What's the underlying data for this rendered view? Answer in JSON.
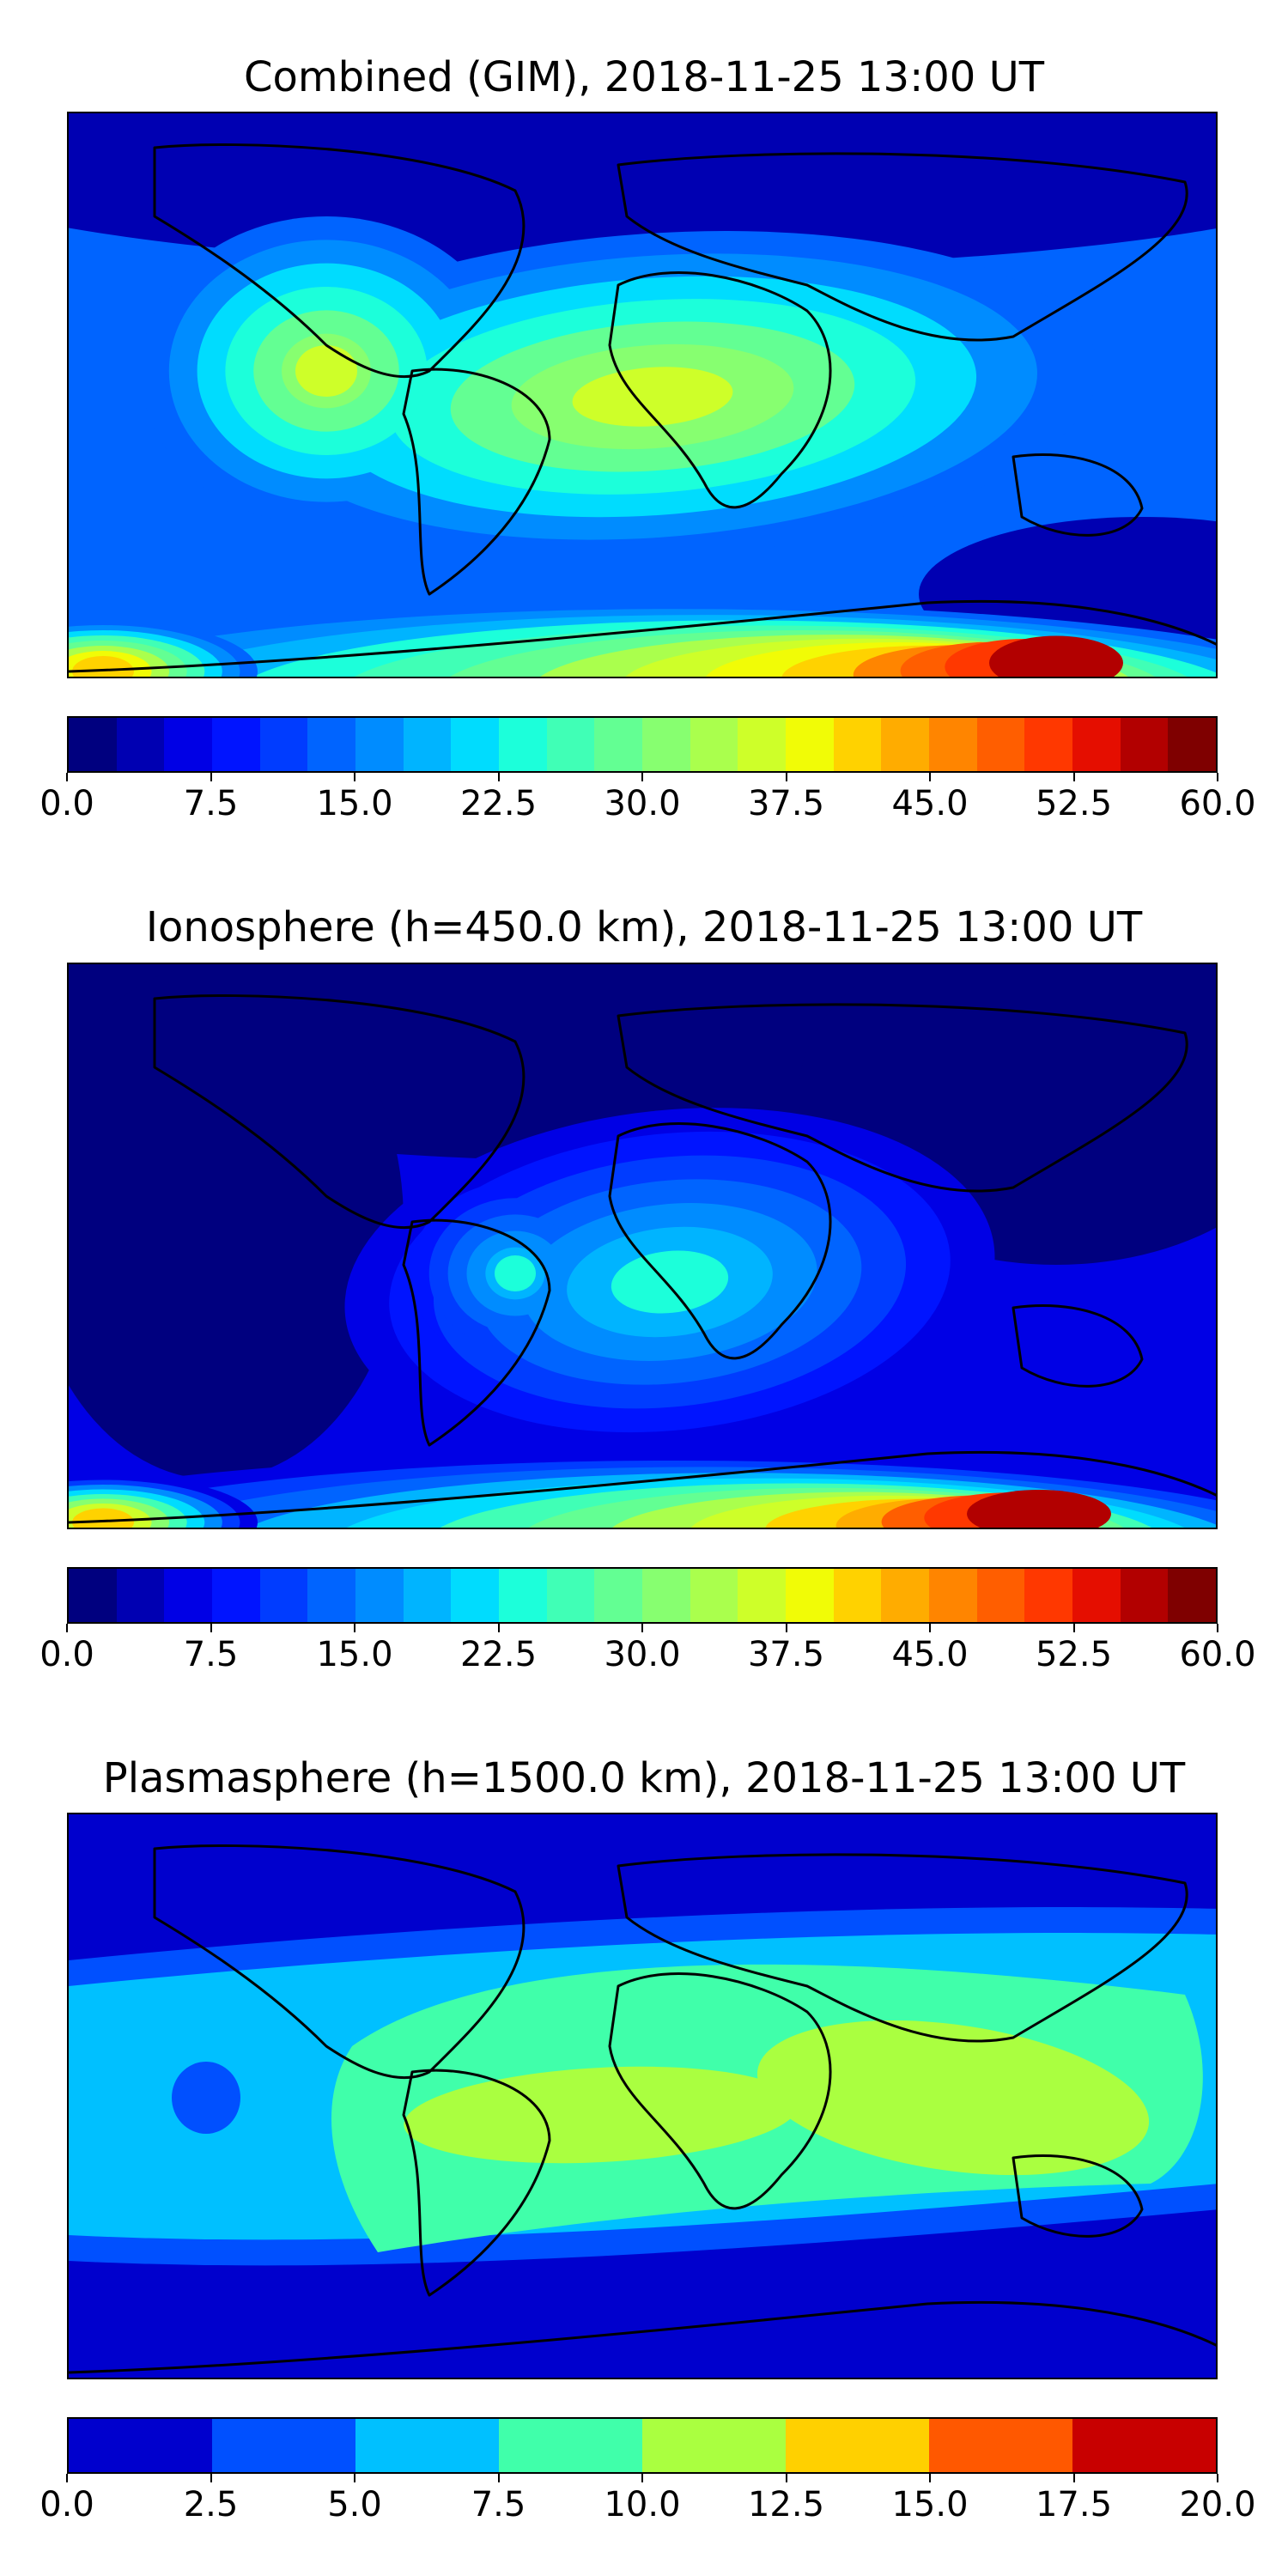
{
  "chart_data": [
    {
      "type": "heatmap",
      "title": "Combined (GIM), 2018-11-25 13:00 UT",
      "colorbar": {
        "min": 0.0,
        "max": 60.0,
        "levels": 24,
        "tick_labels": [
          "0.0",
          "7.5",
          "15.0",
          "22.5",
          "30.0",
          "37.5",
          "45.0",
          "52.5",
          "60.0"
        ],
        "colors": [
          "#00007f",
          "#0000b2",
          "#0000e5",
          "#0014ff",
          "#003cff",
          "#0064ff",
          "#008cff",
          "#00b4ff",
          "#00dcfe",
          "#1cffda",
          "#40ffb6",
          "#63ff93",
          "#87ff70",
          "#aaff4d",
          "#ceff29",
          "#f1fc06",
          "#ffd200",
          "#ffac00",
          "#ff8500",
          "#ff5e00",
          "#ff3800",
          "#e50e00",
          "#b20000",
          "#7f0000"
        ]
      },
      "map": {
        "background_value": 12.5,
        "features": [
          {
            "label": "equatorial crest",
            "peak_value": 35.5
          },
          {
            "label": "south polar maximum",
            "peak_value": 55.0
          },
          {
            "label": "northern high-latitude minimum",
            "peak_value": 3.0
          }
        ]
      }
    },
    {
      "type": "heatmap",
      "title": "Ionosphere  (h=450.0 km), 2018-11-25 13:00 UT",
      "colorbar": {
        "min": 0.0,
        "max": 60.0,
        "levels": 24,
        "tick_labels": [
          "0.0",
          "7.5",
          "15.0",
          "22.5",
          "30.0",
          "37.5",
          "45.0",
          "52.5",
          "60.0"
        ],
        "colors": [
          "#00007f",
          "#0000b2",
          "#0000e5",
          "#0014ff",
          "#003cff",
          "#0064ff",
          "#008cff",
          "#00b4ff",
          "#00dcfe",
          "#1cffda",
          "#40ffb6",
          "#63ff93",
          "#87ff70",
          "#aaff4d",
          "#ceff29",
          "#f1fc06",
          "#ffd200",
          "#ffac00",
          "#ff8500",
          "#ff5e00",
          "#ff3800",
          "#e50e00",
          "#b20000",
          "#7f0000"
        ]
      },
      "map": {
        "background_value": 6.0,
        "features": [
          {
            "label": "equatorial crest",
            "peak_value": 22.0
          },
          {
            "label": "south polar maximum",
            "peak_value": 55.0
          },
          {
            "label": "northern high-latitude minimum",
            "peak_value": 2.0
          }
        ]
      }
    },
    {
      "type": "heatmap",
      "title": "Plasmasphere (h=1500.0 km), 2018-11-25 13:00 UT",
      "colorbar": {
        "min": 0.0,
        "max": 20.0,
        "levels": 8,
        "tick_labels": [
          "0.0",
          "2.5",
          "5.0",
          "7.5",
          "10.0",
          "12.5",
          "15.0",
          "17.5",
          "20.0"
        ],
        "colors": [
          "#0000cd",
          "#0050ff",
          "#00c0ff",
          "#40ffaa",
          "#aaff40",
          "#ffd000",
          "#ff5800",
          "#c80000"
        ]
      },
      "map": {
        "background_value": 1.5,
        "features": [
          {
            "label": "tropical band",
            "peak_value": 8.5
          },
          {
            "label": "South America maximum",
            "peak_value": 11.0
          },
          {
            "label": "Indian Ocean maximum",
            "peak_value": 11.0
          },
          {
            "label": "Pacific local minimum",
            "peak_value": 3.5
          }
        ]
      }
    }
  ]
}
